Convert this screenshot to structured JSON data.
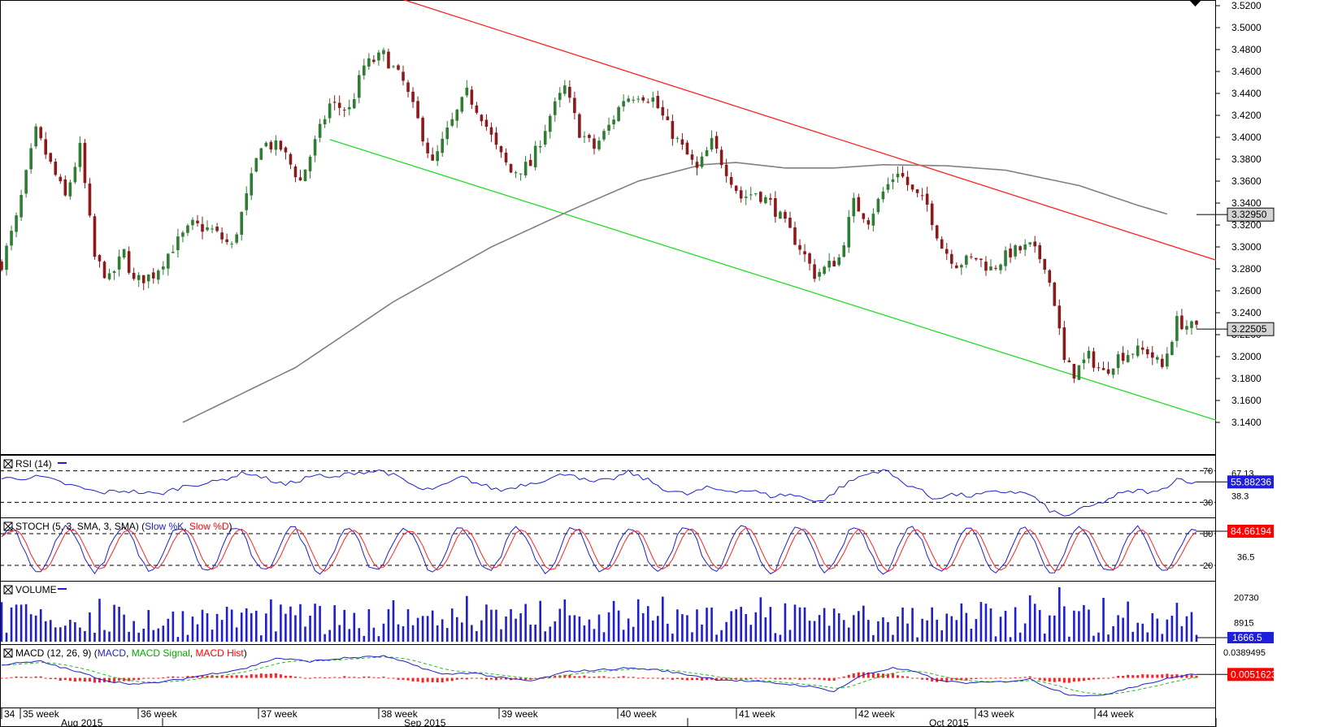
{
  "colors": {
    "bull": "#2e7d32",
    "bear": "#8b1a1a",
    "red_trend": "#ff2020",
    "green_trend": "#22dd22",
    "ma": "#808080",
    "blue": "#1f1fcc",
    "tag_bg": "#d3d3d3",
    "tag_red": "#ff0000",
    "tag_blue": "#1e1edc"
  },
  "price_axis": {
    "ticks": [
      "3.5200",
      "3.5000",
      "3.4800",
      "3.4600",
      "3.4400",
      "3.4200",
      "3.4000",
      "3.3800",
      "3.3600",
      "3.3400",
      "3.3200",
      "3.3000",
      "3.2800",
      "3.2600",
      "3.2400",
      "3.2200",
      "3.2000",
      "3.1800",
      "3.1600",
      "3.1400"
    ],
    "ma_tag": "3.32950",
    "last_tag": "3.22505"
  },
  "chart_data": [
    {
      "type": "candlestick",
      "panel": "price",
      "ylim": [
        3.135,
        3.525
      ],
      "bars": 245,
      "ohlc_anchors": [
        [
          0,
          3.285
        ],
        [
          3,
          3.325
        ],
        [
          7,
          3.405
        ],
        [
          10,
          3.375
        ],
        [
          13,
          3.345
        ],
        [
          16,
          3.39
        ],
        [
          19,
          3.29
        ],
        [
          22,
          3.27
        ],
        [
          25,
          3.295
        ],
        [
          27,
          3.268
        ],
        [
          31,
          3.275
        ],
        [
          35,
          3.3
        ],
        [
          39,
          3.32
        ],
        [
          43,
          3.315
        ],
        [
          47,
          3.3
        ],
        [
          50,
          3.345
        ],
        [
          53,
          3.395
        ],
        [
          57,
          3.39
        ],
        [
          61,
          3.36
        ],
        [
          64,
          3.395
        ],
        [
          67,
          3.43
        ],
        [
          71,
          3.425
        ],
        [
          74,
          3.465
        ],
        [
          78,
          3.475
        ],
        [
          82,
          3.45
        ],
        [
          85,
          3.415
        ],
        [
          88,
          3.375
        ],
        [
          91,
          3.405
        ],
        [
          95,
          3.44
        ],
        [
          98,
          3.42
        ],
        [
          101,
          3.39
        ],
        [
          104,
          3.368
        ],
        [
          108,
          3.375
        ],
        [
          112,
          3.42
        ],
        [
          115,
          3.445
        ],
        [
          118,
          3.405
        ],
        [
          121,
          3.39
        ],
        [
          124,
          3.41
        ],
        [
          127,
          3.435
        ],
        [
          130,
          3.44
        ],
        [
          133,
          3.435
        ],
        [
          136,
          3.41
        ],
        [
          139,
          3.39
        ],
        [
          142,
          3.37
        ],
        [
          145,
          3.395
        ],
        [
          148,
          3.37
        ],
        [
          151,
          3.345
        ],
        [
          154,
          3.35
        ],
        [
          157,
          3.34
        ],
        [
          160,
          3.32
        ],
        [
          163,
          3.3
        ],
        [
          166,
          3.275
        ],
        [
          168,
          3.28
        ],
        [
          171,
          3.29
        ],
        [
          174,
          3.34
        ],
        [
          177,
          3.325
        ],
        [
          180,
          3.35
        ],
        [
          183,
          3.37
        ],
        [
          186,
          3.35
        ],
        [
          189,
          3.338
        ],
        [
          192,
          3.3
        ],
        [
          195,
          3.285
        ],
        [
          199,
          3.29
        ],
        [
          202,
          3.28
        ],
        [
          206,
          3.295
        ],
        [
          210,
          3.3
        ],
        [
          213,
          3.285
        ],
        [
          215,
          3.25
        ],
        [
          217,
          3.195
        ],
        [
          219,
          3.185
        ],
        [
          222,
          3.2
        ],
        [
          225,
          3.185
        ],
        [
          228,
          3.2
        ],
        [
          231,
          3.205
        ],
        [
          234,
          3.205
        ],
        [
          237,
          3.19
        ],
        [
          240,
          3.232
        ],
        [
          244,
          3.225
        ]
      ],
      "ma_anchors": [
        [
          37,
          3.14
        ],
        [
          60,
          3.19
        ],
        [
          80,
          3.25
        ],
        [
          100,
          3.3
        ],
        [
          117,
          3.335
        ],
        [
          130,
          3.36
        ],
        [
          143,
          3.375
        ],
        [
          150,
          3.377
        ],
        [
          160,
          3.372
        ],
        [
          170,
          3.372
        ],
        [
          180,
          3.375
        ],
        [
          193,
          3.374
        ],
        [
          205,
          3.37
        ],
        [
          220,
          3.356
        ],
        [
          232,
          3.338
        ],
        [
          238,
          3.33
        ]
      ],
      "red_trend": {
        "from": [
          81,
          3.527
        ],
        "to": [
          244,
          3.288
        ]
      },
      "green_trend": {
        "from": [
          67,
          3.398
        ],
        "to": [
          244,
          3.142
        ]
      }
    },
    {
      "type": "line",
      "panel": "rsi",
      "title": "RSI (14)",
      "levels": [
        70,
        30
      ],
      "ticks": [
        "70",
        "67.13",
        "38.3",
        "30"
      ],
      "value_tag": "55.88236",
      "ylim": [
        15,
        85
      ],
      "anchors": [
        [
          0,
          60
        ],
        [
          8,
          62
        ],
        [
          15,
          50
        ],
        [
          20,
          42
        ],
        [
          25,
          45
        ],
        [
          32,
          40
        ],
        [
          38,
          52
        ],
        [
          43,
          55
        ],
        [
          50,
          68
        ],
        [
          54,
          60
        ],
        [
          58,
          52
        ],
        [
          64,
          65
        ],
        [
          67,
          60
        ],
        [
          72,
          68
        ],
        [
          78,
          70
        ],
        [
          82,
          58
        ],
        [
          86,
          45
        ],
        [
          90,
          50
        ],
        [
          94,
          62
        ],
        [
          98,
          52
        ],
        [
          102,
          45
        ],
        [
          106,
          52
        ],
        [
          112,
          60
        ],
        [
          116,
          68
        ],
        [
          120,
          55
        ],
        [
          124,
          58
        ],
        [
          128,
          68
        ],
        [
          132,
          58
        ],
        [
          136,
          45
        ],
        [
          140,
          40
        ],
        [
          144,
          48
        ],
        [
          148,
          45
        ],
        [
          153,
          45
        ],
        [
          157,
          38
        ],
        [
          161,
          40
        ],
        [
          165,
          34
        ],
        [
          168,
          32
        ],
        [
          171,
          48
        ],
        [
          175,
          62
        ],
        [
          180,
          72
        ],
        [
          184,
          55
        ],
        [
          187,
          48
        ],
        [
          190,
          35
        ],
        [
          194,
          40
        ],
        [
          198,
          38
        ],
        [
          202,
          42
        ],
        [
          206,
          44
        ],
        [
          210,
          40
        ],
        [
          214,
          20
        ],
        [
          217,
          12
        ],
        [
          220,
          20
        ],
        [
          224,
          28
        ],
        [
          228,
          40
        ],
        [
          232,
          45
        ],
        [
          236,
          42
        ],
        [
          240,
          60
        ],
        [
          242,
          58
        ],
        [
          244,
          54
        ]
      ]
    },
    {
      "type": "line",
      "panel": "stochastic",
      "title": "STOCH (5, 3, SMA, 3, SMA)",
      "series": [
        {
          "name": "Slow %K",
          "values_period": 12
        },
        {
          "name": "Slow %D"
        }
      ],
      "levels": [
        80,
        20
      ],
      "ticks": [
        "80",
        "36.5",
        "20"
      ],
      "value_tag": "84.66194",
      "ylim": [
        0,
        100
      ]
    },
    {
      "type": "bar",
      "panel": "volume",
      "title": "VOLUME",
      "ticks": [
        "20730",
        "8915"
      ],
      "value_tag": "1666.5",
      "ylim": [
        0,
        27000
      ]
    },
    {
      "type": "line",
      "panel": "macd",
      "title": "MACD (12, 26, 9)",
      "series": [
        {
          "name": "MACD"
        },
        {
          "name": "MACD Signal"
        },
        {
          "name": "MACD Hist"
        }
      ],
      "ticks": [
        "0.0389495"
      ],
      "value_tag": "0.0051623",
      "ylim": [
        -0.04,
        0.045
      ],
      "anchors": [
        [
          0,
          0.02
        ],
        [
          8,
          0.025
        ],
        [
          15,
          0.01
        ],
        [
          22,
          -0.005
        ],
        [
          28,
          -0.01
        ],
        [
          34,
          -0.005
        ],
        [
          42,
          0.005
        ],
        [
          50,
          0.015
        ],
        [
          56,
          0.03
        ],
        [
          63,
          0.025
        ],
        [
          70,
          0.03
        ],
        [
          78,
          0.033
        ],
        [
          84,
          0.02
        ],
        [
          90,
          0.005
        ],
        [
          96,
          0.008
        ],
        [
          102,
          0.0
        ],
        [
          108,
          -0.005
        ],
        [
          116,
          0.01
        ],
        [
          122,
          0.012
        ],
        [
          128,
          0.015
        ],
        [
          134,
          0.012
        ],
        [
          140,
          0.005
        ],
        [
          146,
          -0.002
        ],
        [
          152,
          -0.005
        ],
        [
          158,
          -0.008
        ],
        [
          164,
          -0.012
        ],
        [
          170,
          -0.02
        ],
        [
          176,
          0.005
        ],
        [
          182,
          0.015
        ],
        [
          186,
          0.01
        ],
        [
          192,
          -0.005
        ],
        [
          198,
          -0.008
        ],
        [
          204,
          -0.006
        ],
        [
          210,
          -0.002
        ],
        [
          214,
          -0.015
        ],
        [
          218,
          -0.025
        ],
        [
          224,
          -0.028
        ],
        [
          230,
          -0.015
        ],
        [
          236,
          -0.005
        ],
        [
          242,
          0.005
        ],
        [
          244,
          0.005
        ]
      ]
    }
  ],
  "indicators": {
    "rsi": {
      "title": "RSI (14)"
    },
    "stoch": {
      "title_plain": "STOCH (5, 3, SMA, 3, SMA)",
      "k_name": "Slow %K",
      "d_name": "Slow %D"
    },
    "volume": {
      "title": "VOLUME"
    },
    "macd": {
      "title": "MACD (12, 26, 9)",
      "line_name": "MACD",
      "signal_name": "MACD Signal",
      "hist_name": "MACD Hist"
    }
  },
  "time_axis": {
    "weeks": [
      "34",
      "35 week",
      "36 week",
      "37 week",
      "38 week",
      "39 week",
      "40 week",
      "41 week",
      "42 week",
      "43 week",
      "44 week"
    ],
    "months": [
      "Aug 2015",
      "Sep 2015",
      "Oct 2015"
    ]
  }
}
